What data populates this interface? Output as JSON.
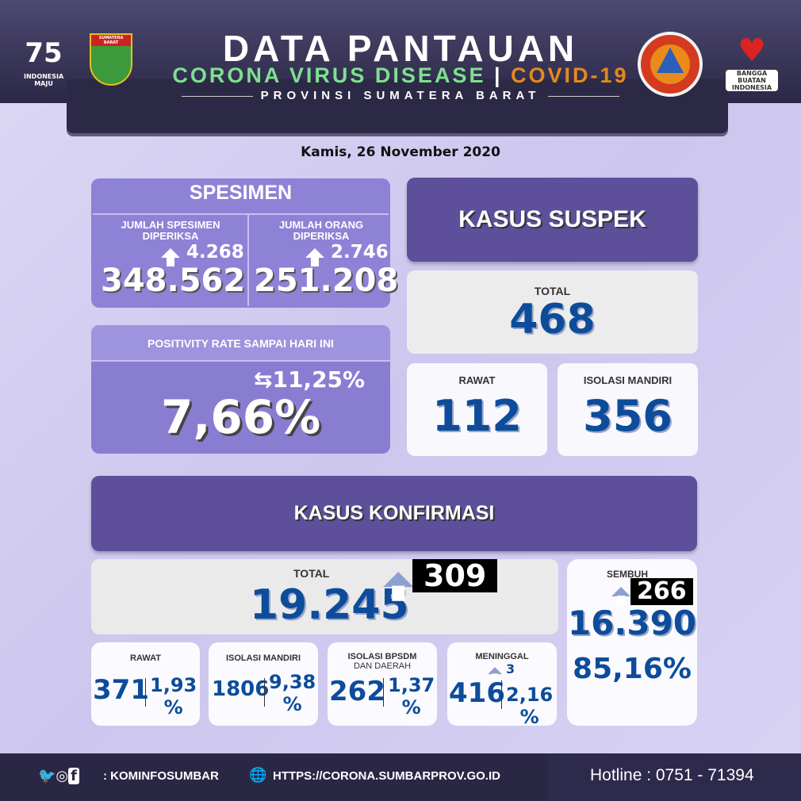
{
  "header": {
    "title": "DATA PANTAUAN",
    "subtitle_green": "CORONA VIRUS DISEASE",
    "subtitle_orange": "COVID-19",
    "region": "PROVINSI SUMATERA BARAT",
    "logos": {
      "left1": "INDONESIA MAJU",
      "left2": "SUMATERA BARAT",
      "right1": "BPBD SUMATERA BARAT",
      "right2": "BANGGA BUATAN INDONESIA"
    }
  },
  "date": "Kamis, 26 November 2020",
  "spesimen": {
    "title": "SPESIMEN",
    "specimen_label": "JUMLAH SPESIMEN DIPERIKSA",
    "specimen_increase": "4.268",
    "specimen_total": "348.562",
    "people_label": "JUMLAH ORANG DIPERIKSA",
    "people_increase": "2.746",
    "people_total": "251.208"
  },
  "positivity": {
    "label": "POSITIVITY RATE SAMPAI HARI INI",
    "previous": "11,25%",
    "value": "7,66%"
  },
  "suspek": {
    "title": "KASUS SUSPEK",
    "total_label": "TOTAL",
    "total": "468",
    "rawat_label": "RAWAT",
    "rawat": "112",
    "isolasi_label": "ISOLASI MANDIRI",
    "isolasi": "356"
  },
  "konfirmasi": {
    "title": "KASUS KONFIRMASI",
    "total_label": "TOTAL",
    "total": "19.245",
    "increase": "309",
    "sembuh_label": "SEMBUH",
    "sembuh_increase": "266",
    "sembuh": "16.390",
    "sembuh_pct": "85,16%",
    "items": [
      {
        "label": "RAWAT",
        "sub": "",
        "value": "371",
        "pct": "1,93",
        "increase": ""
      },
      {
        "label": "ISOLASI MANDIRI",
        "sub": "",
        "value": "1806",
        "pct": "9,38",
        "increase": ""
      },
      {
        "label": "ISOLASI BPSDM",
        "sub": "DAN DAERAH",
        "value": "262",
        "pct": "1,37",
        "increase": ""
      },
      {
        "label": "MENINGGAL",
        "sub": "",
        "value": "416",
        "pct": "2,16",
        "increase": "3"
      }
    ],
    "pct_sign": "%"
  },
  "footer": {
    "social": ": KOMINFOSUMBAR",
    "website": "HTTPS://CORONA.SUMBARPROV.GO.ID",
    "hotline": "Hotline : 0751 - 71394"
  },
  "colors": {
    "header": "#2c2946",
    "accent": "#5d4f9a",
    "card_purple": "#8e82d6",
    "number_blue": "#0d4c9a",
    "green": "#7ee08f",
    "orange": "#e58a1c"
  }
}
